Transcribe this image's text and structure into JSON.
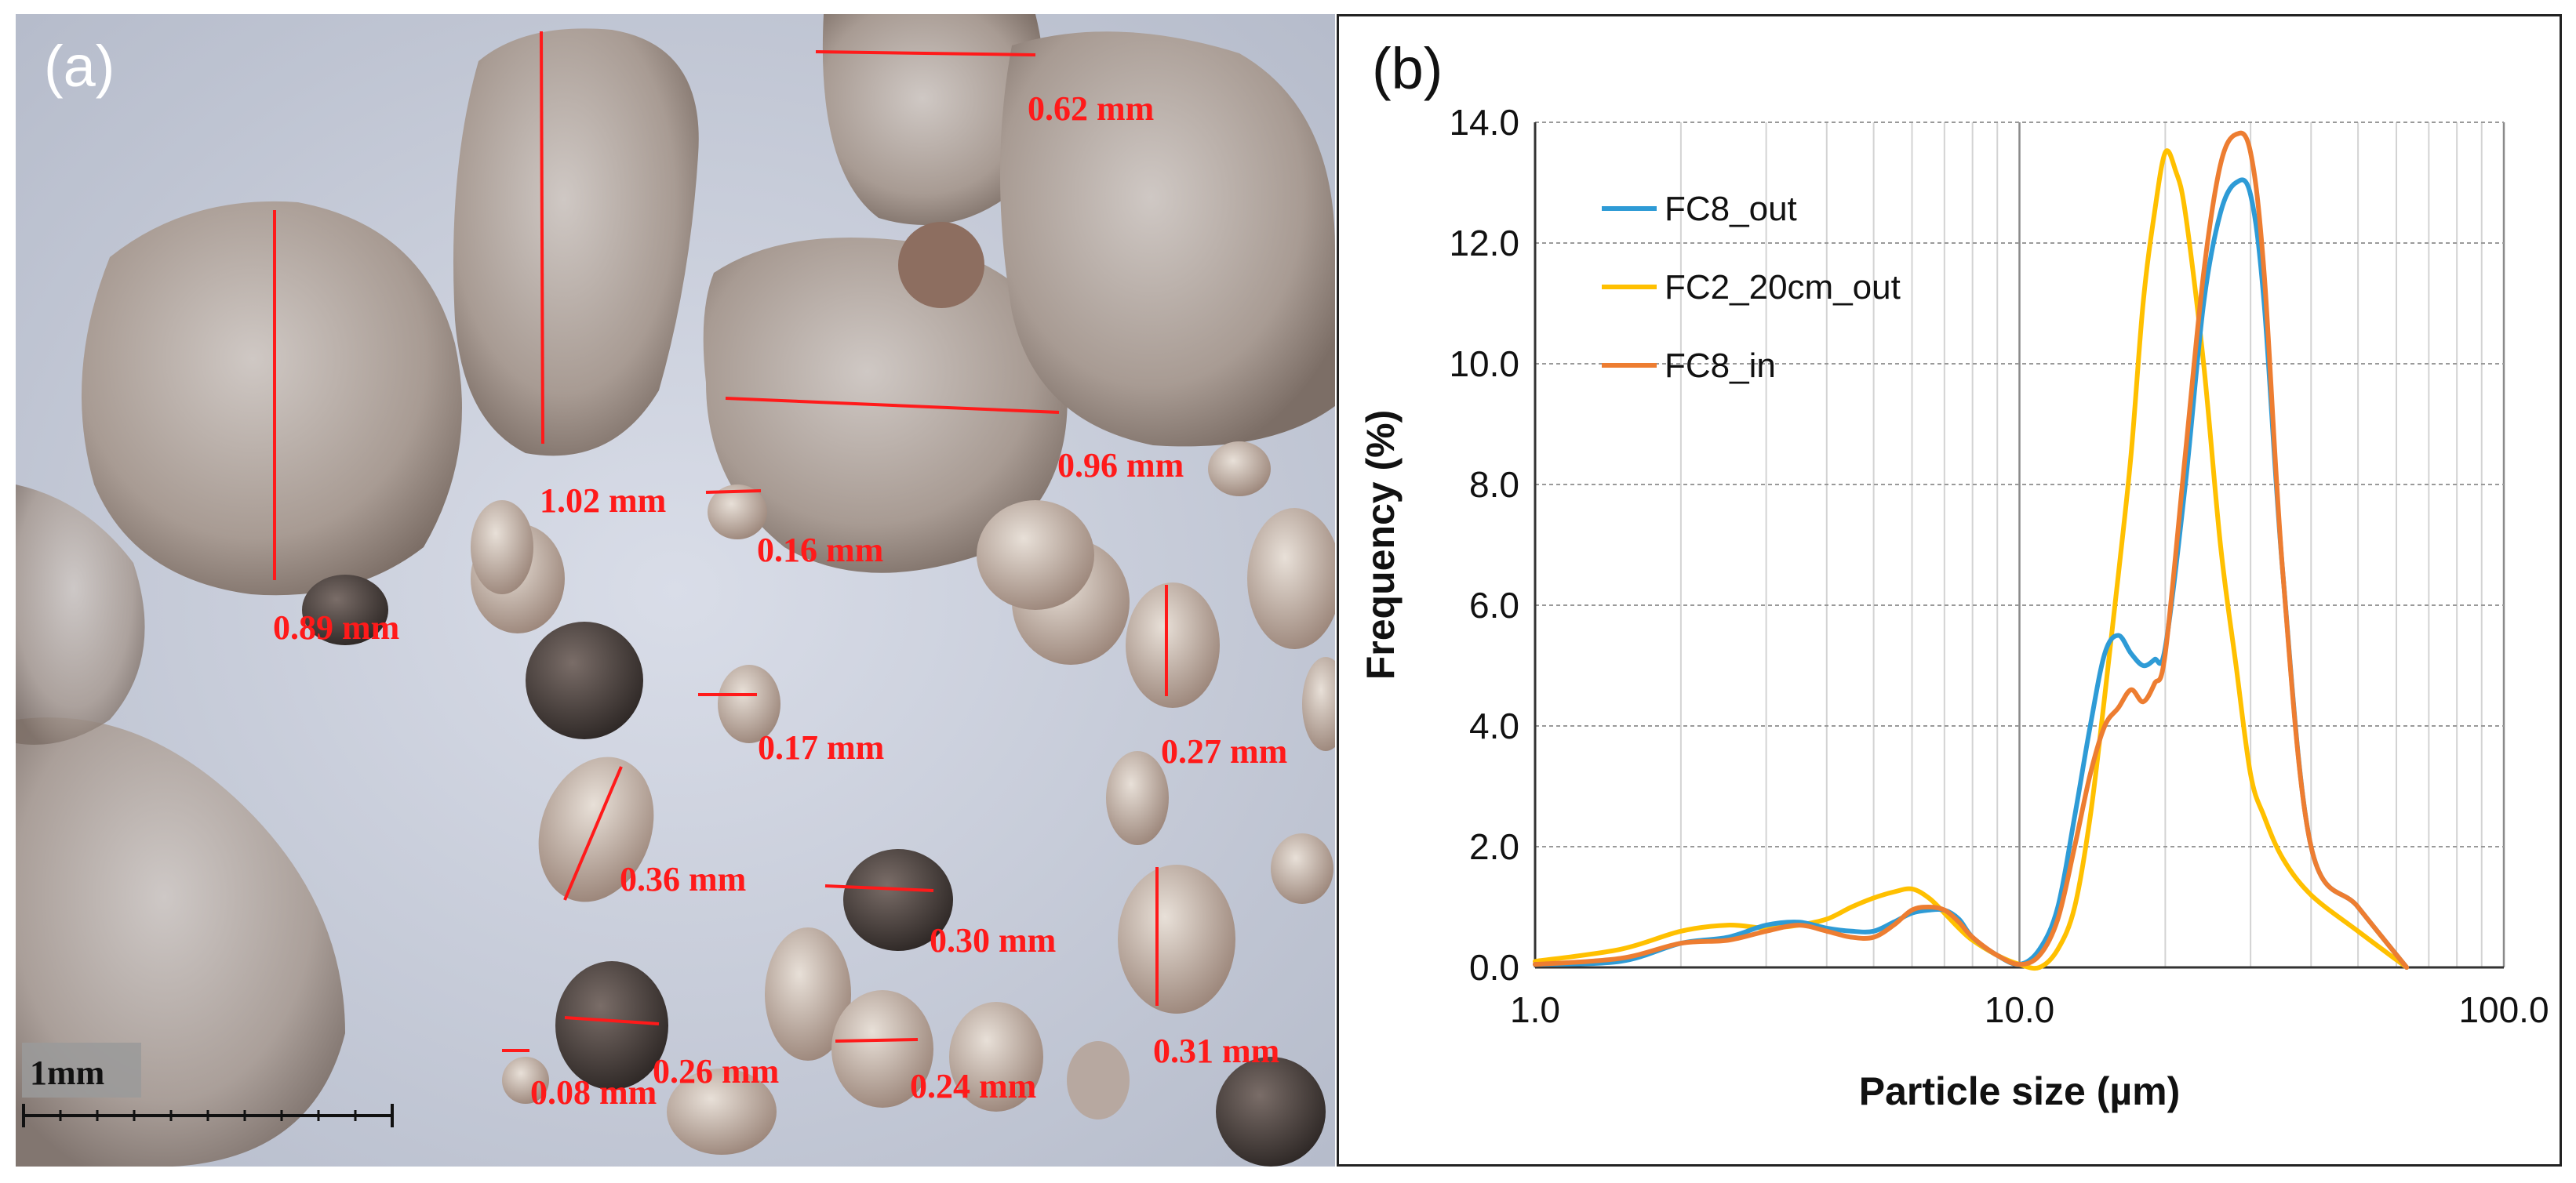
{
  "figure": {
    "panel_a": {
      "letter": "(a)",
      "scale_bar_label": "1mm",
      "measurements": [
        {
          "label": "0.62 mm"
        },
        {
          "label": "1.02 mm"
        },
        {
          "label": "0.96 mm"
        },
        {
          "label": "0.89 mm"
        },
        {
          "label": "0.16 mm"
        },
        {
          "label": "0.17 mm"
        },
        {
          "label": "0.27 mm"
        },
        {
          "label": "0.36 mm"
        },
        {
          "label": "0.30 mm"
        },
        {
          "label": "0.26 mm"
        },
        {
          "label": "0.08 mm"
        },
        {
          "label": "0.24 mm"
        },
        {
          "label": "0.31 mm"
        }
      ]
    },
    "panel_b": {
      "letter": "(b)"
    }
  },
  "chart_data": {
    "type": "line",
    "title": "",
    "xlabel": "Particle size (µm)",
    "ylabel": "Frequency (%)",
    "xscale": "log",
    "xlim": [
      1.0,
      100.0
    ],
    "ylim": [
      0.0,
      14.0
    ],
    "x_ticks": [
      1.0,
      10.0,
      100.0
    ],
    "x_tick_labels": [
      "1.0",
      "10.0",
      "100.0"
    ],
    "y_ticks": [
      0,
      2,
      4,
      6,
      8,
      10,
      12,
      14
    ],
    "y_tick_labels": [
      "0.0",
      "2.0",
      "4.0",
      "6.0",
      "8.0",
      "10.0",
      "12.0",
      "14.0"
    ],
    "grid": true,
    "legend_position": "top-left",
    "series": [
      {
        "name": "FC8_out",
        "color": "#2e9bd6",
        "x": [
          1.0,
          1.5,
          2.0,
          2.5,
          3.0,
          3.5,
          4.0,
          4.5,
          5.0,
          5.5,
          6.0,
          6.5,
          7.0,
          7.5,
          8.0,
          9.0,
          10.0,
          11.0,
          12.0,
          13.0,
          14.0,
          15.0,
          16.0,
          17.0,
          18.0,
          19.0,
          20.0,
          22.0,
          24.0,
          26.0,
          28.0,
          30.0,
          32.0,
          35.0,
          40.0,
          50.0,
          63.0
        ],
        "y": [
          0.05,
          0.1,
          0.4,
          0.5,
          0.7,
          0.75,
          0.65,
          0.6,
          0.6,
          0.75,
          0.9,
          0.95,
          0.95,
          0.8,
          0.5,
          0.2,
          0.05,
          0.3,
          1.0,
          2.5,
          4.0,
          5.2,
          5.5,
          5.2,
          5.0,
          5.1,
          5.3,
          8.0,
          11.0,
          12.5,
          13.0,
          12.8,
          11.0,
          6.5,
          2.0,
          1.0,
          0.0
        ]
      },
      {
        "name": "FC2_20cm_out",
        "color": "#ffc000",
        "x": [
          1.0,
          1.5,
          2.0,
          2.5,
          3.0,
          3.5,
          4.0,
          4.5,
          5.0,
          5.5,
          6.0,
          6.5,
          7.0,
          7.5,
          8.0,
          9.0,
          10.0,
          11.0,
          12.0,
          13.0,
          14.0,
          15.0,
          16.0,
          17.0,
          18.0,
          19.0,
          20.0,
          21.0,
          22.0,
          24.0,
          26.0,
          28.0,
          30.0,
          32.0,
          35.0,
          40.0,
          50.0,
          63.0
        ],
        "y": [
          0.1,
          0.3,
          0.6,
          0.7,
          0.65,
          0.7,
          0.8,
          1.0,
          1.15,
          1.25,
          1.3,
          1.15,
          0.9,
          0.65,
          0.45,
          0.2,
          0.05,
          0.0,
          0.3,
          1.0,
          2.5,
          4.5,
          6.5,
          8.5,
          11.0,
          12.5,
          13.5,
          13.2,
          12.5,
          10.0,
          7.0,
          5.0,
          3.2,
          2.5,
          1.8,
          1.2,
          0.6,
          0.0
        ]
      },
      {
        "name": "FC8_in",
        "color": "#ed7d31",
        "x": [
          1.0,
          1.5,
          2.0,
          2.5,
          3.0,
          3.5,
          4.0,
          4.5,
          5.0,
          5.5,
          6.0,
          6.5,
          7.0,
          7.5,
          8.0,
          9.0,
          10.0,
          11.0,
          12.0,
          13.0,
          14.0,
          15.0,
          16.0,
          17.0,
          18.0,
          19.0,
          20.0,
          22.0,
          24.0,
          26.0,
          28.0,
          30.0,
          32.0,
          35.0,
          40.0,
          50.0,
          63.0
        ],
        "y": [
          0.05,
          0.15,
          0.4,
          0.45,
          0.6,
          0.7,
          0.6,
          0.5,
          0.5,
          0.7,
          0.95,
          1.0,
          0.95,
          0.75,
          0.5,
          0.2,
          0.05,
          0.2,
          0.8,
          2.0,
          3.2,
          4.0,
          4.3,
          4.6,
          4.4,
          4.7,
          5.2,
          8.5,
          11.5,
          13.3,
          13.8,
          13.5,
          11.5,
          6.5,
          2.0,
          1.0,
          0.0
        ]
      }
    ]
  }
}
